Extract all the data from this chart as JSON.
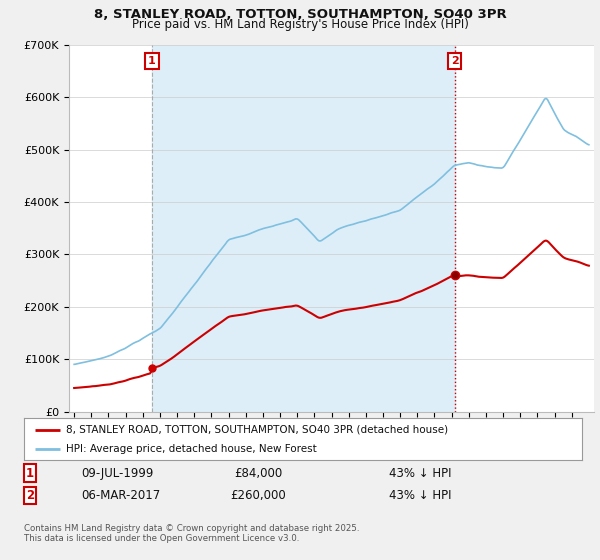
{
  "title_line1": "8, STANLEY ROAD, TOTTON, SOUTHAMPTON, SO40 3PR",
  "title_line2": "Price paid vs. HM Land Registry's House Price Index (HPI)",
  "legend_label_red": "8, STANLEY ROAD, TOTTON, SOUTHAMPTON, SO40 3PR (detached house)",
  "legend_label_blue": "HPI: Average price, detached house, New Forest",
  "footnote": "Contains HM Land Registry data © Crown copyright and database right 2025.\nThis data is licensed under the Open Government Licence v3.0.",
  "annotation1_date": "09-JUL-1999",
  "annotation1_price": "£84,000",
  "annotation1_hpi": "43% ↓ HPI",
  "annotation2_date": "06-MAR-2017",
  "annotation2_price": "£260,000",
  "annotation2_hpi": "43% ↓ HPI",
  "red_color": "#cc0000",
  "blue_color": "#7fbfdf",
  "blue_fill_color": "#ddeef8",
  "background_color": "#f0f0f0",
  "plot_bg_color": "#ffffff",
  "ylim_min": 0,
  "ylim_max": 700000,
  "ann1_year": 1999.53,
  "ann2_year": 2017.17,
  "ann1_sale_price": 84000,
  "ann2_sale_price": 260000
}
